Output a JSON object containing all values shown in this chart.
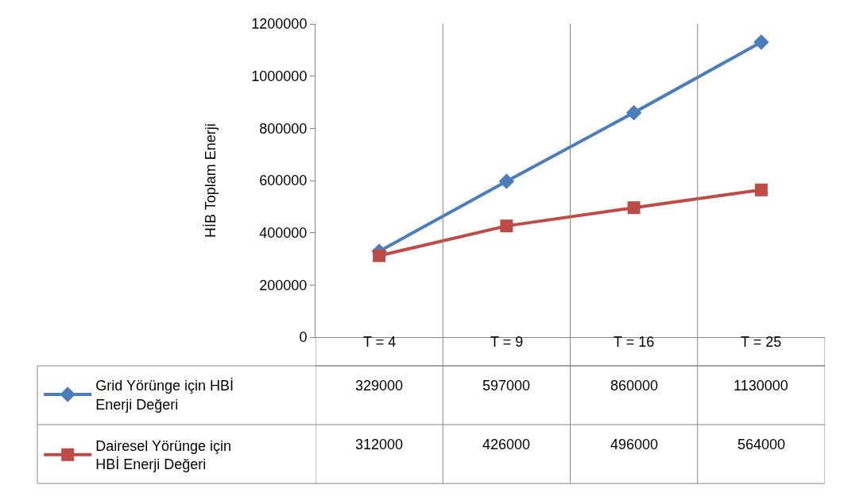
{
  "chart_data": {
    "type": "line",
    "ylabel": "HİB Toplam Enerji",
    "categories": [
      "T = 4",
      "T = 9",
      "T = 16",
      "T = 25"
    ],
    "series": [
      {
        "name": "Grid Yörünge için HBİ Enerji Değeri",
        "color": "#4a7ebb",
        "marker": "diamond",
        "values": [
          329000,
          597000,
          860000,
          1130000
        ]
      },
      {
        "name": "Dairesel Yörünge için HBİ Enerji Değeri",
        "color": "#be4b48",
        "marker": "square",
        "values": [
          312000,
          426000,
          496000,
          564000
        ]
      }
    ],
    "ylim": [
      0,
      1200000
    ],
    "yticks": [
      0,
      200000,
      400000,
      600000,
      800000,
      1000000,
      1200000
    ],
    "grid": "x",
    "legend": "bottom left",
    "data_labels": true
  }
}
